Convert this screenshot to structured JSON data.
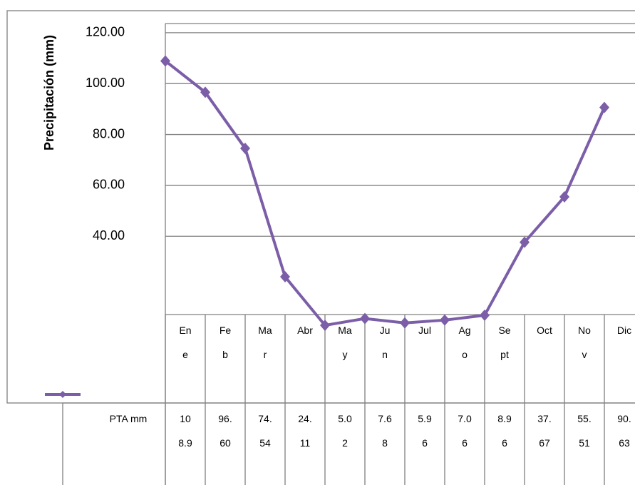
{
  "chart_data": {
    "type": "line",
    "y_axis_title": "Precipitación (mm)",
    "categories": [
      "Ene",
      "Feb",
      "Mar",
      "Abr",
      "May",
      "Jun",
      "Jul",
      "Ago",
      "Sept",
      "Oct",
      "Nov",
      "Dic"
    ],
    "series": [
      {
        "name": "PTA mm",
        "color": "#7b5ea7",
        "values": [
          108.9,
          96.6,
          74.54,
          24.11,
          5.02,
          7.68,
          5.96,
          7.06,
          8.96,
          37.67,
          55.51,
          90.63
        ],
        "value_labels": [
          "108.9",
          "96.60",
          "74.54",
          "24.11",
          "5.02",
          "7.68",
          "5.96",
          "7.06",
          "8.96",
          "37.67",
          "55.51",
          "90.63"
        ]
      }
    ],
    "ylim": [
      0,
      125
    ],
    "yticks": [
      {
        "value": 40,
        "label": "40.00"
      },
      {
        "value": 60,
        "label": "60.00"
      },
      {
        "value": 80,
        "label": "80.00"
      },
      {
        "value": 100,
        "label": "100.00"
      },
      {
        "value": 120,
        "label": "120.00"
      }
    ],
    "grid": true
  }
}
